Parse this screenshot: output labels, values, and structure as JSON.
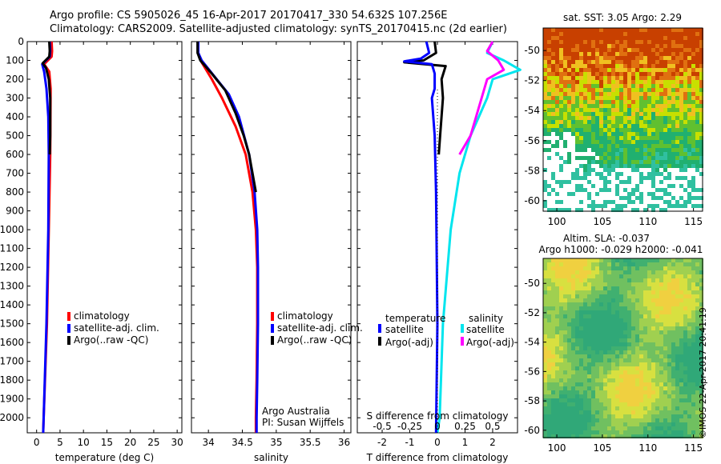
{
  "header": {
    "line1": "Argo profile: CS 5905026_45 16-Apr-2017 20170417_330 54.632S 107.256E",
    "line2": "Climatology: CARS2009. Satellite-adjusted climatology: synTS_20170415.nc (2d earlier)"
  },
  "watermark": "©IMOS 22-Apr-2017 20:41:19",
  "colors": {
    "climatology": "#ff0000",
    "satellite": "#0000ff",
    "argo": "#000000",
    "sat_salinity": "#00e5ee",
    "argo_salinity": "#ff00ff"
  },
  "chart_data": [
    {
      "type": "line",
      "id": "temperature",
      "xlabel": "temperature (deg C)",
      "ylabel": "",
      "xlim": [
        -2,
        31
      ],
      "ylim": [
        2080,
        0
      ],
      "xticks": [
        0,
        5,
        10,
        15,
        20,
        25,
        30
      ],
      "yticks": [
        0,
        100,
        200,
        300,
        400,
        500,
        600,
        700,
        800,
        900,
        1000,
        1100,
        1200,
        1300,
        1400,
        1500,
        1600,
        1700,
        1800,
        1900,
        2000
      ],
      "legend": [
        "climatology",
        "satellite-adj. clim.",
        "Argo(..raw -QC)"
      ],
      "series": [
        {
          "name": "climatology",
          "color": "#ff0000",
          "points": [
            [
              3.2,
              0
            ],
            [
              3.3,
              50
            ],
            [
              3.2,
              80
            ],
            [
              1.6,
              120
            ],
            [
              2.7,
              160
            ],
            [
              3.0,
              250
            ],
            [
              2.9,
              600
            ],
            [
              2.6,
              1000
            ],
            [
              2.2,
              1500
            ],
            [
              1.5,
              2000
            ],
            [
              1.4,
              2080
            ]
          ]
        },
        {
          "name": "satellite-adj. clim.",
          "color": "#0000ff",
          "points": [
            [
              2.8,
              0
            ],
            [
              2.9,
              50
            ],
            [
              2.8,
              80
            ],
            [
              1.2,
              120
            ],
            [
              1.6,
              160
            ],
            [
              2.1,
              250
            ],
            [
              2.5,
              400
            ],
            [
              2.6,
              600
            ],
            [
              2.5,
              1000
            ],
            [
              2.1,
              1500
            ],
            [
              1.5,
              2000
            ],
            [
              1.4,
              2080
            ]
          ]
        },
        {
          "name": "Argo(..raw -QC)",
          "color": "#000000",
          "points": [
            [
              2.7,
              0
            ],
            [
              2.8,
              50
            ],
            [
              2.7,
              80
            ],
            [
              1.3,
              115
            ],
            [
              2.0,
              140
            ],
            [
              2.6,
              200
            ],
            [
              2.9,
              300
            ],
            [
              2.9,
              500
            ],
            [
              2.8,
              600
            ]
          ]
        }
      ]
    },
    {
      "type": "line",
      "id": "salinity",
      "xlabel": "salinity",
      "xlim": [
        33.75,
        36.1
      ],
      "ylim": [
        2080,
        0
      ],
      "xticks": [
        34,
        34.5,
        35,
        35.5,
        36
      ],
      "legend": [
        "climatology",
        "satellite-adj. clim.",
        "Argo(..raw -QC)"
      ],
      "annotation": [
        "Argo Australia",
        "PI: Susan Wijffels"
      ],
      "series": [
        {
          "name": "climatology",
          "color": "#ff0000",
          "points": [
            [
              33.85,
              0
            ],
            [
              33.85,
              60
            ],
            [
              33.9,
              110
            ],
            [
              34.05,
              200
            ],
            [
              34.2,
              300
            ],
            [
              34.4,
              450
            ],
            [
              34.55,
              600
            ],
            [
              34.65,
              800
            ],
            [
              34.7,
              1000
            ],
            [
              34.72,
              1200
            ],
            [
              34.72,
              1500
            ],
            [
              34.71,
              1800
            ],
            [
              34.7,
              2000
            ],
            [
              34.7,
              2080
            ]
          ]
        },
        {
          "name": "satellite-adj. clim.",
          "color": "#0000ff",
          "points": [
            [
              33.85,
              0
            ],
            [
              33.85,
              60
            ],
            [
              33.9,
              100
            ],
            [
              34.1,
              190
            ],
            [
              34.3,
              280
            ],
            [
              34.45,
              400
            ],
            [
              34.6,
              600
            ],
            [
              34.68,
              800
            ],
            [
              34.72,
              1000
            ],
            [
              34.73,
              1200
            ],
            [
              34.73,
              1500
            ],
            [
              34.72,
              1800
            ],
            [
              34.71,
              2000
            ],
            [
              34.71,
              2080
            ]
          ]
        },
        {
          "name": "Argo(..raw -QC)",
          "color": "#000000",
          "points": [
            [
              33.84,
              0
            ],
            [
              33.84,
              60
            ],
            [
              33.88,
              100
            ],
            [
              34.05,
              170
            ],
            [
              34.25,
              260
            ],
            [
              34.4,
              380
            ],
            [
              34.52,
              500
            ],
            [
              34.6,
              600
            ],
            [
              34.65,
              700
            ],
            [
              34.7,
              800
            ]
          ]
        }
      ]
    },
    {
      "type": "line",
      "id": "difference",
      "xlabel": "T difference from climatology",
      "xlabel2": "S difference from climatology",
      "xlim": [
        -2.9,
        2.9
      ],
      "ylim": [
        2080,
        0
      ],
      "xticks": [
        -2,
        -1,
        0,
        1,
        2
      ],
      "xticks2": [
        "-0.5",
        "-0.25",
        "0",
        "0.25",
        "0.5"
      ],
      "legend_groups": [
        {
          "title": "temperature",
          "items": [
            {
              "label": "satellite",
              "color": "#0000ff"
            },
            {
              "label": "Argo(-adj)",
              "color": "#000000"
            }
          ]
        },
        {
          "title": "salinity",
          "items": [
            {
              "label": "satellite",
              "color": "#00e5ee"
            },
            {
              "label": "Argo(-adj)",
              "color": "#ff00ff"
            }
          ]
        }
      ],
      "series": [
        {
          "name": "S satellite",
          "color": "#00e5ee",
          "points": [
            [
              0.5,
              0
            ],
            [
              0.45,
              60
            ],
            [
              0.6,
              100
            ],
            [
              0.75,
              150
            ],
            [
              0.5,
              200
            ],
            [
              0.45,
              300
            ],
            [
              0.3,
              500
            ],
            [
              0.2,
              700
            ],
            [
              0.12,
              1000
            ],
            [
              0.05,
              1500
            ],
            [
              0.02,
              2000
            ],
            [
              0.0,
              2080
            ]
          ]
        },
        {
          "name": "S Argo(-adj)",
          "color": "#ff00ff",
          "points": [
            [
              0.5,
              0
            ],
            [
              0.45,
              50
            ],
            [
              0.55,
              100
            ],
            [
              0.6,
              150
            ],
            [
              0.45,
              200
            ],
            [
              0.4,
              300
            ],
            [
              0.35,
              400
            ],
            [
              0.3,
              500
            ],
            [
              0.2,
              600
            ]
          ]
        },
        {
          "name": "T Argo(-adj)",
          "color": "#000000",
          "points": [
            [
              -0.1,
              0
            ],
            [
              -0.05,
              60
            ],
            [
              -0.5,
              100
            ],
            [
              -1.2,
              110
            ],
            [
              0.3,
              130
            ],
            [
              0.15,
              200
            ],
            [
              0.2,
              300
            ],
            [
              0.1,
              500
            ],
            [
              0.05,
              600
            ]
          ]
        },
        {
          "name": "T satellite",
          "color": "#0000ff",
          "points": [
            [
              -0.4,
              0
            ],
            [
              -0.3,
              60
            ],
            [
              -0.6,
              90
            ],
            [
              -1.2,
              105
            ],
            [
              -0.2,
              120
            ],
            [
              -0.1,
              170
            ],
            [
              -0.1,
              250
            ],
            [
              -0.2,
              300
            ],
            [
              -0.1,
              500
            ],
            [
              -0.05,
              800
            ],
            [
              0,
              1500
            ],
            [
              -0.05,
              2080
            ]
          ]
        }
      ]
    },
    {
      "type": "heatmap",
      "id": "sst_map",
      "title": "sat. SST: 3.05 Argo: 2.29",
      "xlim": [
        98.5,
        116
      ],
      "ylim": [
        -60.7,
        -48.5
      ],
      "xticks": [
        100,
        105,
        110,
        115
      ],
      "yticks": [
        -50,
        -52,
        -54,
        -56,
        -58,
        -60
      ]
    },
    {
      "type": "heatmap",
      "id": "sla_map",
      "title": "Altim. SLA: -0.037",
      "subtitle": "Argo h1000: -0.029 h2000: -0.041",
      "xlim": [
        98.5,
        116
      ],
      "ylim": [
        -60.5,
        -48.3
      ],
      "xticks": [
        100,
        105,
        110,
        115
      ],
      "yticks": [
        -50,
        -52,
        -54,
        -56,
        -58,
        -60
      ]
    }
  ]
}
